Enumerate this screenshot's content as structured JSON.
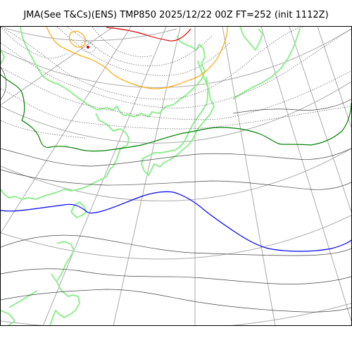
{
  "title": "JMA(See T&Cs)(ENS) TMP850 2025/12/22 00Z FT=252 (init 1112Z)",
  "colors": {
    "coastline": "#90ee90",
    "grid": "#a9a9a9",
    "isotherm_thin": "#444444",
    "isotherm_dotted": "#555555",
    "isotherm_red": "#dd0000",
    "isotherm_orange": "#ffa500",
    "isotherm_green": "#008000",
    "isotherm_blue": "#0000ff",
    "marker": "#cc0000"
  }
}
